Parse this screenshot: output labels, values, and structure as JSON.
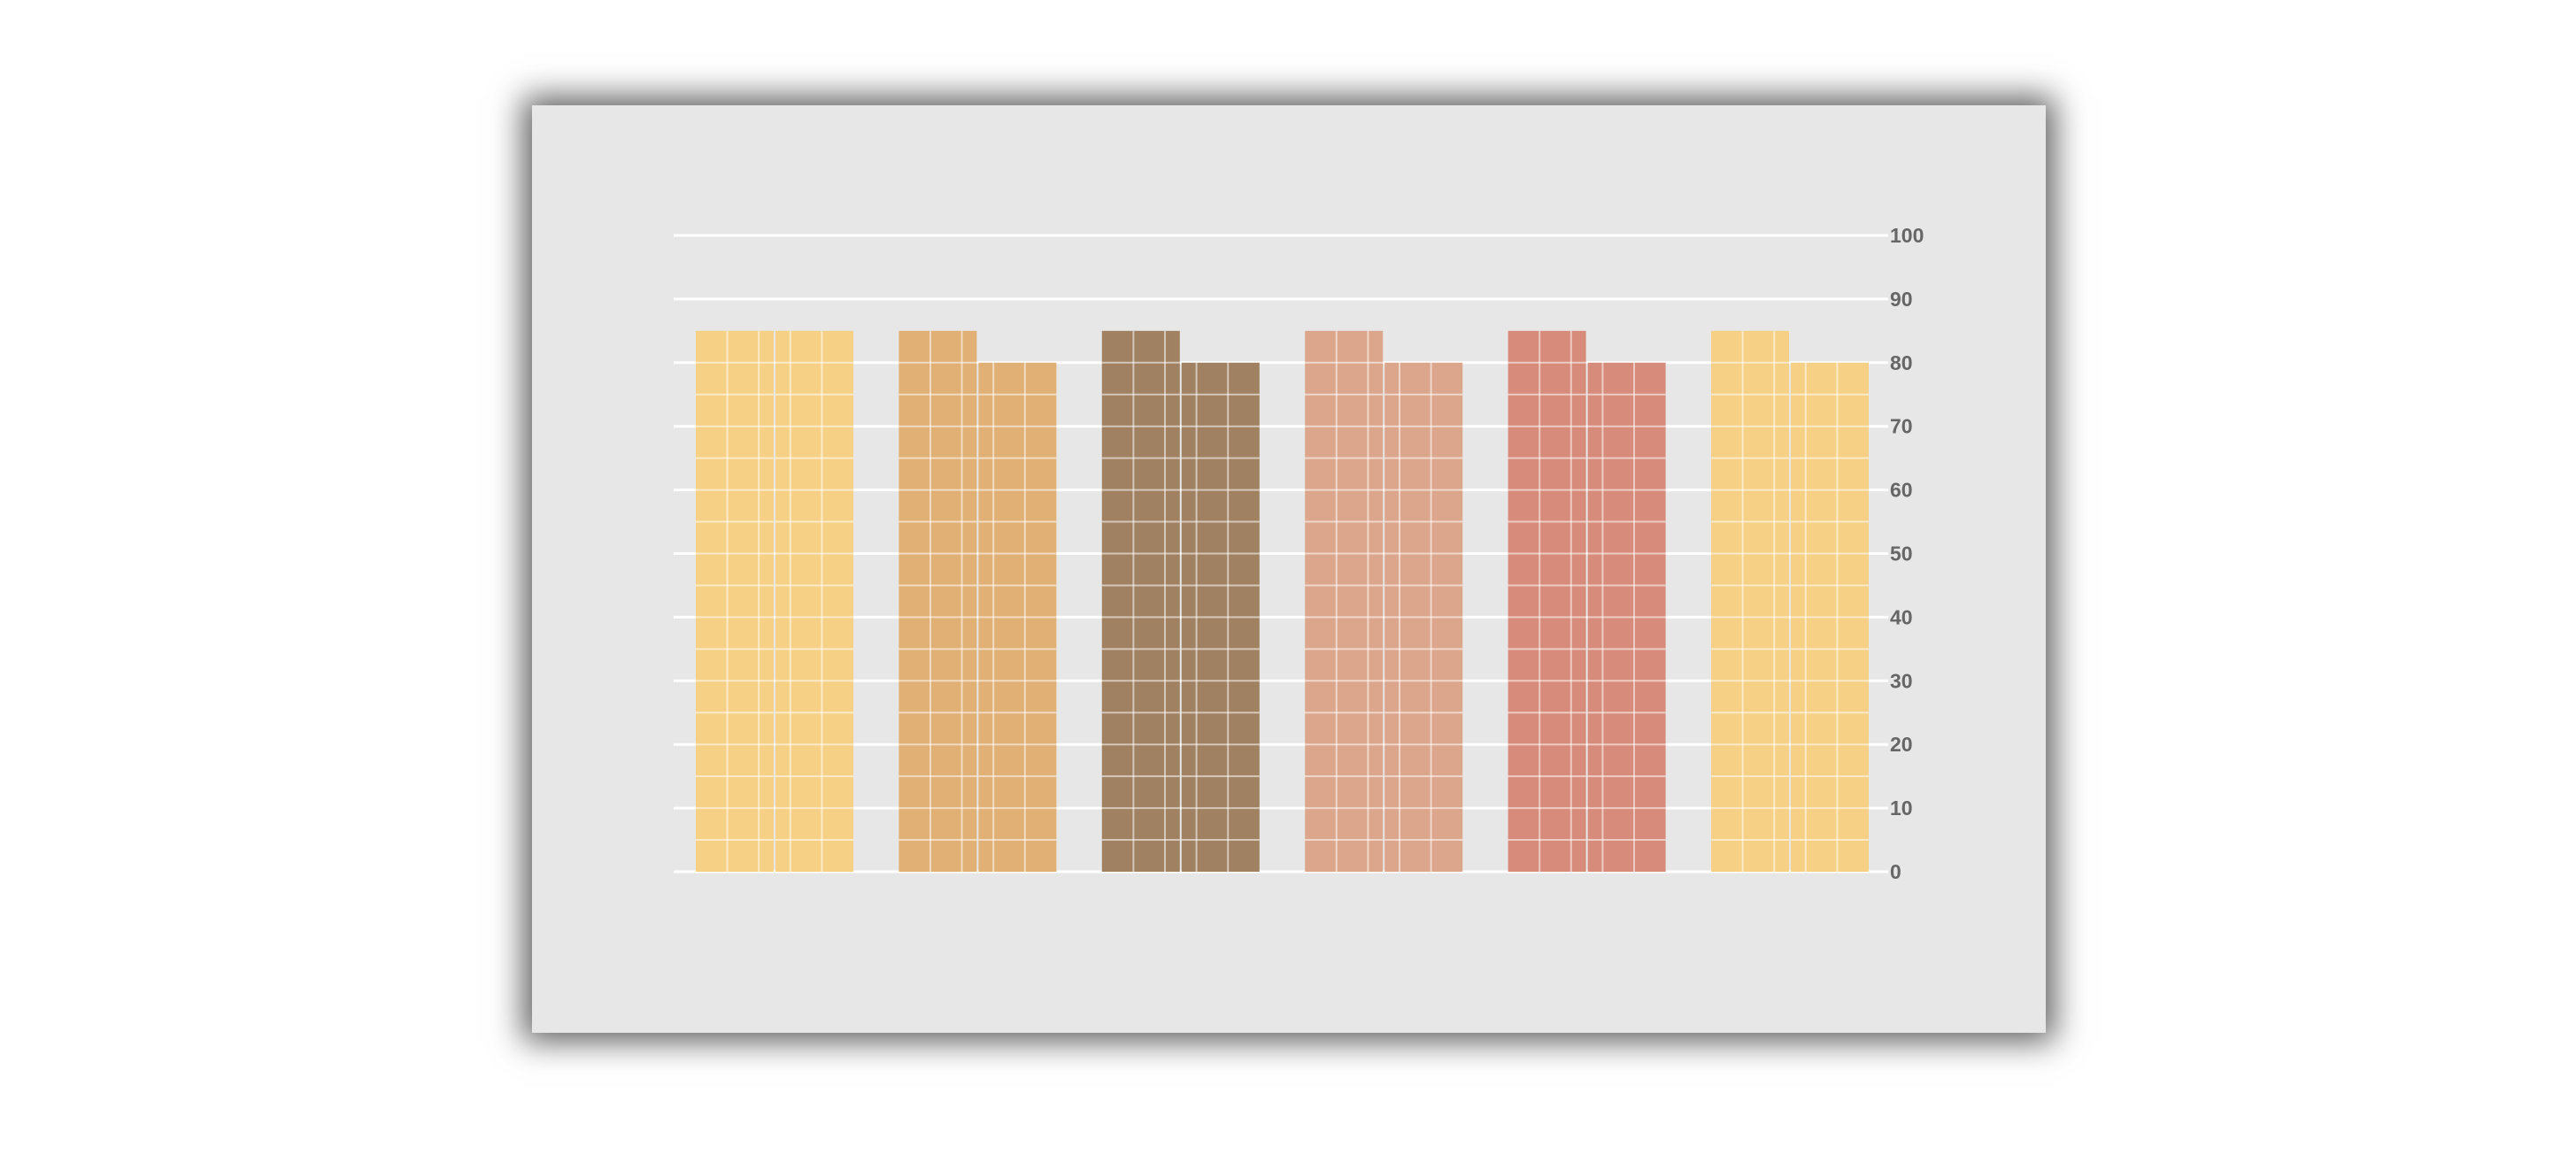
{
  "chart_data": {
    "type": "bar",
    "title": "",
    "xlabel": "",
    "ylabel": "",
    "ylim": [
      0,
      100
    ],
    "y_ticks": [
      "0",
      "10",
      "20",
      "30",
      "40",
      "50",
      "60",
      "70",
      "80",
      "90",
      "100"
    ],
    "y_axis_position": "right",
    "grid": true,
    "legend": "none",
    "categories": [
      "",
      "",
      "",
      "",
      "",
      ""
    ],
    "series": [
      {
        "values": [
          85,
          85,
          85,
          85,
          85,
          85
        ]
      },
      {
        "values": [
          85,
          80,
          80,
          80,
          80,
          80
        ]
      }
    ],
    "colors": [
      "#f6d185",
      "#e1b075",
      "#a08162",
      "#dca68c",
      "#d78c7b",
      "#f6d185"
    ],
    "background_color": "#e7e7e7",
    "gridline_color": "#ffffff",
    "tick_label_color": "#666666"
  }
}
